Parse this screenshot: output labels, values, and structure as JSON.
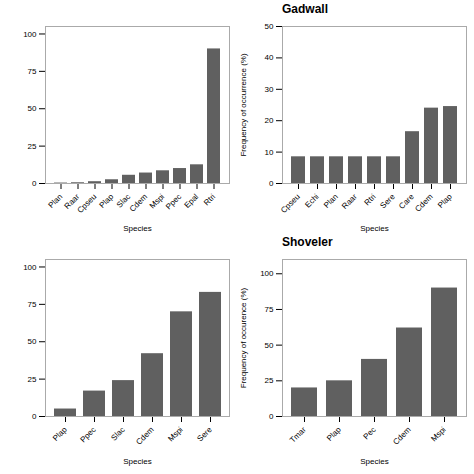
{
  "chart_data": [
    {
      "type": "bar",
      "categories": [
        "Plan",
        "Raar",
        "Cpseu",
        "Plap",
        "Slac",
        "Cdem",
        "Mspi",
        "Ppec",
        "Epal",
        "Rtri"
      ],
      "values": [
        0.3,
        0.5,
        1.2,
        2.5,
        5.5,
        7.0,
        8.5,
        10.0,
        12.5,
        90.0
      ],
      "xlabel": "Species",
      "color": "#606060",
      "ylim": [
        0,
        105
      ],
      "yticks": [
        0,
        25,
        50,
        75,
        100
      ]
    },
    {
      "type": "bar",
      "title": "Gadwall",
      "categories": [
        "Cpseu",
        "Echi",
        "Plan",
        "Raar",
        "Rtri",
        "Sere",
        "Care",
        "Cdem",
        "Plap"
      ],
      "values": [
        8.5,
        8.5,
        8.5,
        8.5,
        8.5,
        8.5,
        16.5,
        24.0,
        24.5
      ],
      "xlabel": "Species",
      "ylabel": "Frequency of occurrence (%)",
      "color": "#606060",
      "ylim": [
        0,
        50
      ],
      "yticks": [
        0,
        10,
        20,
        30,
        40,
        50
      ]
    },
    {
      "type": "bar",
      "categories": [
        "Plap",
        "Ppec",
        "Slac",
        "Cdem",
        "Mspi",
        "Sere"
      ],
      "values": [
        5.0,
        17.0,
        24.0,
        42.0,
        70.0,
        83.0
      ],
      "xlabel": "Species",
      "color": "#606060",
      "ylim": [
        0,
        105
      ],
      "yticks": [
        0,
        25,
        50,
        75,
        100
      ]
    },
    {
      "type": "bar",
      "title": "Shoveler",
      "categories": [
        "Tmar",
        "Plap",
        "Pec",
        "Cdem",
        "Mspi"
      ],
      "values": [
        20.0,
        25.0,
        40.0,
        62.0,
        90.0
      ],
      "xlabel": "Species",
      "ylabel": "Frequency of occurence (%)",
      "color": "#606060",
      "ylim": [
        0,
        110
      ],
      "yticks": [
        0,
        25,
        50,
        75,
        100
      ]
    }
  ]
}
